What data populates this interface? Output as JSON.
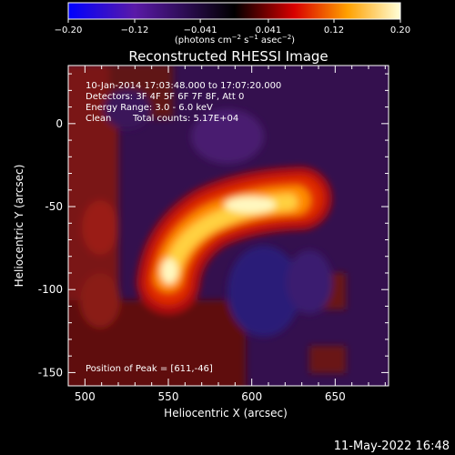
{
  "chart_data": {
    "type": "heatmap",
    "title": "Reconstructed RHESSI Image",
    "xlabel": "Heliocentric X (arcsec)",
    "ylabel": "Heliocentric Y (arcsec)",
    "xlim": [
      490,
      682
    ],
    "ylim": [
      -158,
      35
    ],
    "x_ticks": [
      500,
      550,
      600,
      650
    ],
    "y_ticks": [
      0,
      -50,
      -100,
      -150
    ],
    "colorbar": {
      "range": [
        -0.2,
        0.2
      ],
      "tick_values": [
        -0.2,
        -0.12,
        -0.041,
        0.041,
        0.12,
        0.2
      ],
      "tick_labels": [
        "−0.20",
        "−0.12",
        "−0.041",
        "0.041",
        "0.12",
        "0.20"
      ],
      "units_prefix": "(photons cm",
      "units_exp1": "−2",
      "units_mid": " s",
      "units_exp2": "−1",
      "units_mid2": " asec",
      "units_exp3": "−2",
      "units_suffix": ")",
      "colors": [
        "#0000ff",
        "#5a1aa8",
        "#000000",
        "#d80000",
        "#ffa000",
        "#ffffc8"
      ]
    },
    "annotations": {
      "time_range": "10-Jan-2014 17:03:48.000 to 17:07:20.000",
      "detectors": "Detectors: 3F 4F 5F 6F 7F 8F, Att 0",
      "energy": "Energy Range: 3.0 - 6.0 keV",
      "clean_label": "Clean",
      "total_counts": "Total counts: 5.17E+04",
      "peak": "Position of Peak = [611,-46]"
    },
    "peak": [
      611,
      -46
    ]
  },
  "footer": {
    "date": "11-May-2022 16:48"
  }
}
